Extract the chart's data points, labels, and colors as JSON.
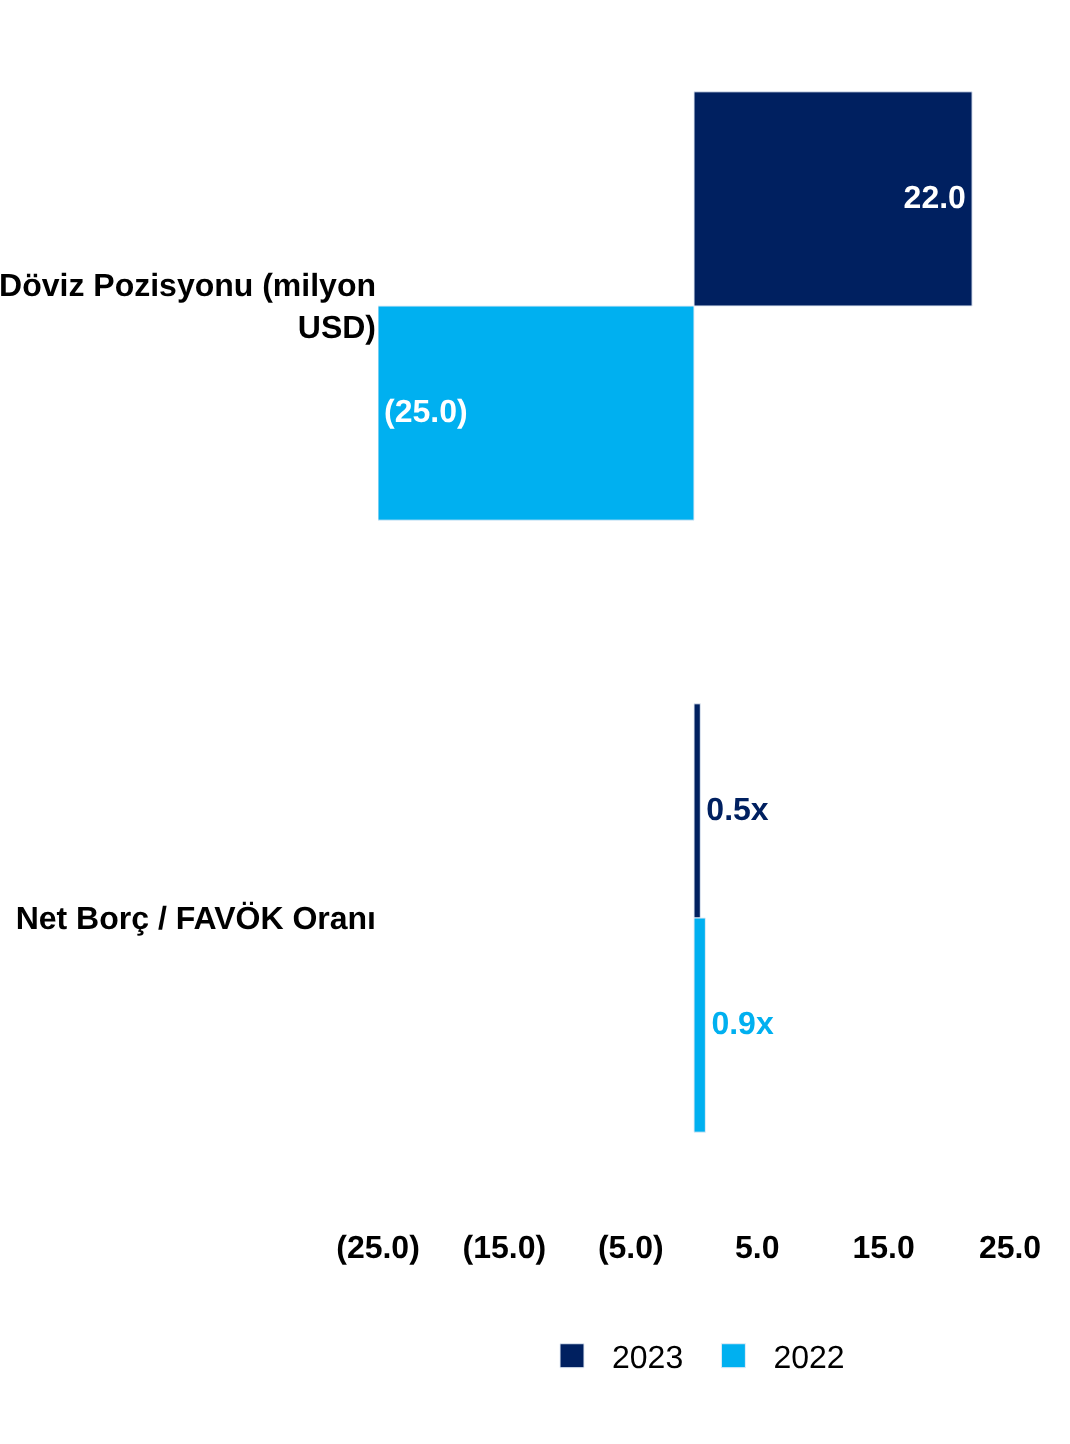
{
  "chart_data": {
    "type": "bar",
    "orientation": "horizontal",
    "categories": [
      "Döviz Pozisyonu (milyon USD)",
      "Net Borç / FAVÖK Oranı"
    ],
    "series": [
      {
        "name": "2023",
        "color": "#002060",
        "values": [
          22.0,
          0.5
        ],
        "value_labels": [
          "22.0",
          "0.5x"
        ]
      },
      {
        "name": "2022",
        "color": "#00b0f0",
        "values": [
          -25.0,
          0.9
        ],
        "value_labels": [
          "(25.0)",
          "0.9x"
        ]
      }
    ],
    "xlim": [
      -25,
      25
    ],
    "xticks": [
      {
        "value": -25,
        "label": "(25.0)"
      },
      {
        "value": -15,
        "label": "(15.0)"
      },
      {
        "value": -5,
        "label": "(5.0)"
      },
      {
        "value": 5,
        "label": "5.0"
      },
      {
        "value": 15,
        "label": "15.0"
      },
      {
        "value": 25,
        "label": "25.0"
      }
    ],
    "legend": "bottom"
  }
}
